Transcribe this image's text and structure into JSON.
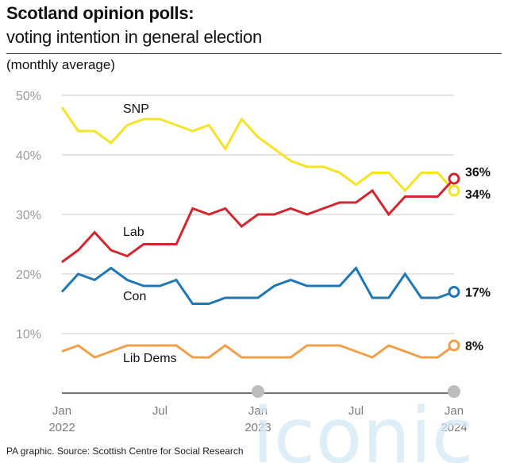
{
  "header": {
    "title": "Scotland opinion polls:",
    "subtitle": "voting intention in general election",
    "note": "(monthly average)"
  },
  "source": "PA graphic. Source: Scottish Centre for Social Research",
  "watermark": "iconic",
  "chart_data": {
    "type": "line",
    "ylim": [
      0,
      50
    ],
    "yticks": [
      10,
      20,
      30,
      40,
      50
    ],
    "ytick_labels": [
      "10%",
      "20%",
      "30%",
      "40%",
      "50%"
    ],
    "x_tick_labels": [
      {
        "month": "Jan",
        "year": "2022",
        "index": 0
      },
      {
        "month": "Jul",
        "year": "",
        "index": 6
      },
      {
        "month": "Jan",
        "year": "2023",
        "index": 12
      },
      {
        "month": "Jul",
        "year": "",
        "index": 18
      },
      {
        "month": "Jan",
        "year": "2024",
        "index": 24
      }
    ],
    "x": [
      "2022-01",
      "2022-02",
      "2022-03",
      "2022-04",
      "2022-05",
      "2022-06",
      "2022-07",
      "2022-08",
      "2022-09",
      "2022-10",
      "2022-11",
      "2022-12",
      "2023-01",
      "2023-02",
      "2023-03",
      "2023-04",
      "2023-05",
      "2023-06",
      "2023-07",
      "2023-08",
      "2023-09",
      "2023-10",
      "2023-11",
      "2023-12",
      "2024-01"
    ],
    "grid": true,
    "series": [
      {
        "name": "SNP",
        "color": "#f5e325",
        "end_label": "34%",
        "values": [
          48,
          44,
          44,
          42,
          45,
          46,
          46,
          45,
          44,
          45,
          41,
          46,
          43,
          41,
          39,
          38,
          38,
          37,
          35,
          37,
          37,
          34,
          37,
          37,
          34
        ]
      },
      {
        "name": "Lab",
        "color": "#d22730",
        "end_label": "36%",
        "values": [
          22,
          24,
          27,
          24,
          23,
          25,
          25,
          25,
          31,
          30,
          31,
          28,
          30,
          30,
          31,
          30,
          31,
          32,
          32,
          34,
          30,
          33,
          33,
          33,
          36
        ]
      },
      {
        "name": "Con",
        "color": "#1f78b4",
        "end_label": "17%",
        "values": [
          17,
          20,
          19,
          21,
          19,
          18,
          18,
          19,
          15,
          15,
          16,
          16,
          16,
          18,
          19,
          18,
          18,
          18,
          21,
          16,
          16,
          20,
          16,
          16,
          17
        ]
      },
      {
        "name": "Lib Dems",
        "color": "#f0a04b",
        "end_label": "8%",
        "values": [
          7,
          8,
          6,
          7,
          8,
          8,
          8,
          8,
          6,
          6,
          8,
          6,
          6,
          6,
          6,
          8,
          8,
          8,
          7,
          6,
          8,
          7,
          6,
          6,
          8
        ]
      }
    ]
  }
}
